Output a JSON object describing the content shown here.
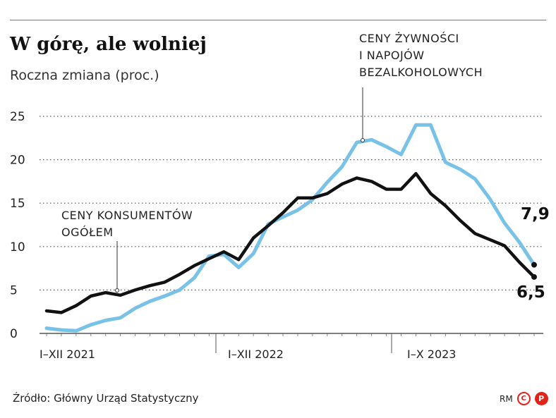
{
  "header": {
    "title": "W górę, ale wolniej",
    "subtitle": "Roczna zmiana (proc.)"
  },
  "footer": {
    "source": "Źródło: Główny Urząd Statystyczny",
    "credit": "RM",
    "logo_c": "C",
    "logo_p": "P"
  },
  "chart_data": {
    "type": "line",
    "ylim": [
      0,
      25
    ],
    "yticks": [
      0,
      5,
      10,
      15,
      20,
      25
    ],
    "grid": true,
    "x_labels": [
      "I–XII 2021",
      "I–XII 2022",
      "I–X 2023"
    ],
    "series": [
      {
        "name": "CENY ŻYWNOŚCI I NAPOJÓW BEZALKOHOLOWYCH",
        "color": "#78c2e8",
        "values": [
          0.6,
          0.4,
          0.3,
          1.0,
          1.5,
          1.8,
          2.9,
          3.7,
          4.3,
          5.0,
          6.4,
          8.9,
          9.1,
          7.6,
          9.2,
          12.6,
          13.4,
          14.2,
          15.4,
          17.4,
          19.2,
          22.0,
          22.3,
          21.5,
          20.6,
          24.0,
          24.0,
          19.7,
          18.9,
          17.8,
          15.5,
          12.7,
          10.5,
          7.9
        ],
        "end_label": "7,9"
      },
      {
        "name": "CENY KONSUMENTÓW OGÓŁEM",
        "color": "#111111",
        "values": [
          2.6,
          2.4,
          3.2,
          4.3,
          4.7,
          4.4,
          5.0,
          5.5,
          5.9,
          6.8,
          7.8,
          8.6,
          9.4,
          8.5,
          11.0,
          12.4,
          13.9,
          15.6,
          15.6,
          16.1,
          17.2,
          17.9,
          17.5,
          16.6,
          16.6,
          18.4,
          16.1,
          14.7,
          13.0,
          11.5,
          10.8,
          10.1,
          8.2,
          6.5
        ],
        "end_label": "6,5"
      }
    ],
    "annotations": {
      "food_lines": [
        "CENY ŻYWNOŚCI",
        "I NAPOJÓW",
        "BEZALKOHOLOWYCH"
      ],
      "cpi_lines": [
        "CENY KONSUMENTÓW",
        "OGÓŁEM"
      ]
    }
  }
}
